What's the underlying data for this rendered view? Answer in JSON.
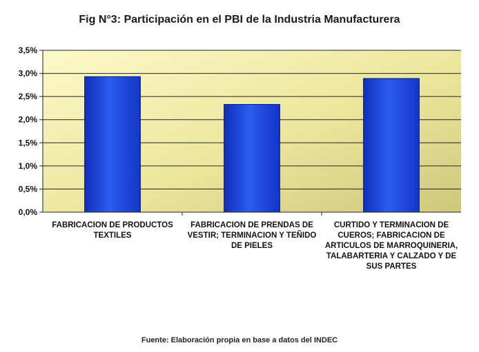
{
  "chart_data": {
    "type": "bar",
    "title": "Fig N°3: Participación en el PBI de la Industria Manufacturera",
    "categories": [
      "FABRICACION DE PRODUCTOS TEXTILES",
      "FABRICACION DE PRENDAS DE VESTIR; TERMINACION Y TEÑIDO DE PIELES",
      "CURTIDO Y TERMINACION DE CUEROS; FABRICACION DE ARTICULOS DE MARROQUINERIA, TALABARTERIA Y CALZADO Y DE SUS PARTES"
    ],
    "values": [
      2.93,
      2.33,
      2.89
    ],
    "ylim": [
      0,
      3.5
    ],
    "yticks": [
      "0,0%",
      "0,5%",
      "1,0%",
      "1,5%",
      "2,0%",
      "2,5%",
      "3,0%",
      "3,5%"
    ],
    "ytick_values": [
      0,
      0.5,
      1.0,
      1.5,
      2.0,
      2.5,
      3.0,
      3.5
    ],
    "grid": true,
    "bar_color": "#1f44d6",
    "plot_bg": "#f3f0b0",
    "source": "Fuente: Elaboración propia en base a datos del INDEC"
  }
}
